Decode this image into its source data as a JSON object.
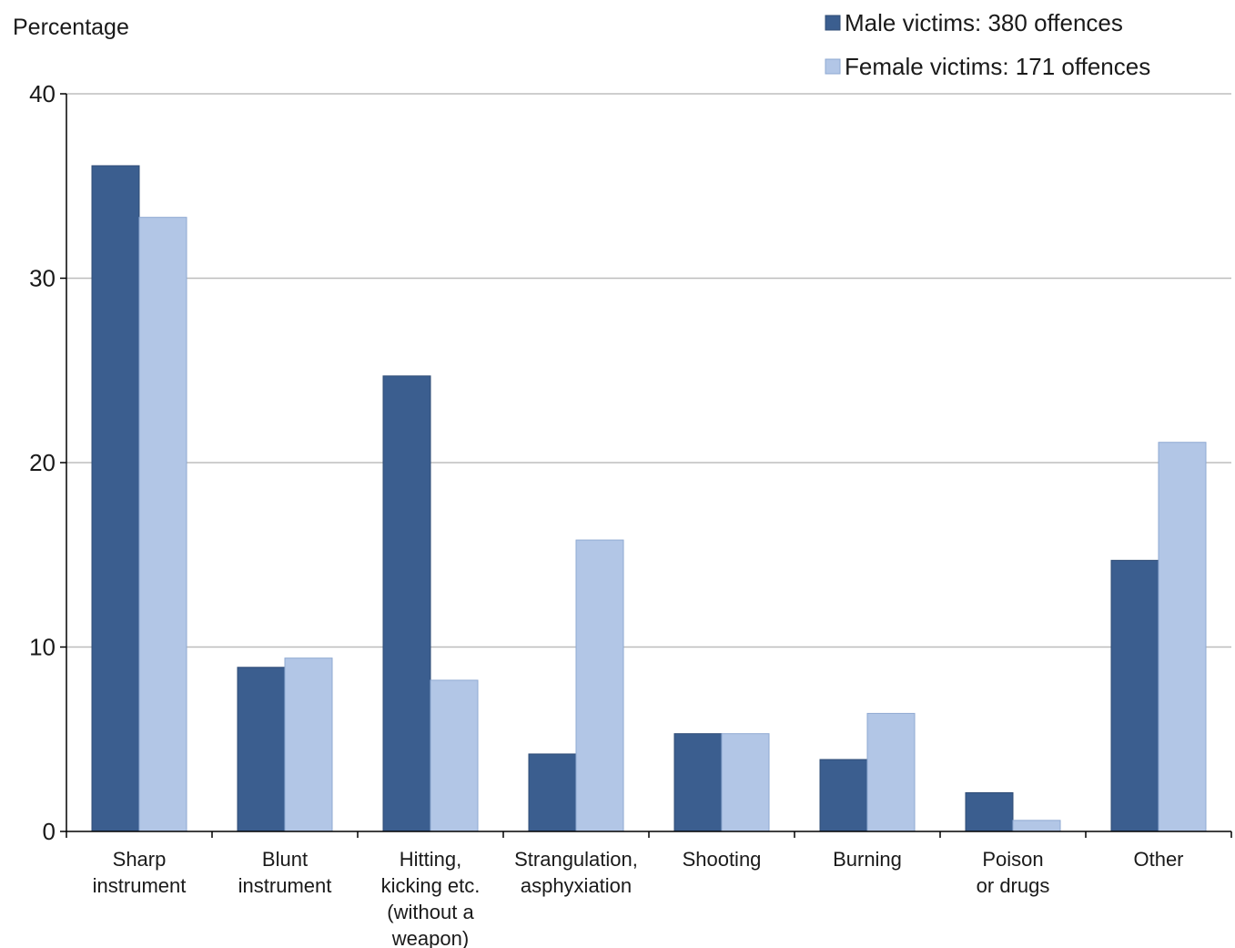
{
  "chart_data": {
    "type": "bar",
    "ylabel": "Percentage",
    "ylim": [
      0,
      40
    ],
    "yticks": [
      0,
      10,
      20,
      30,
      40
    ],
    "grid": true,
    "legend_position": "top-right",
    "categories": [
      [
        "Sharp",
        "instrument"
      ],
      [
        "Blunt",
        "instrument"
      ],
      [
        "Hitting,",
        "kicking etc.",
        "(without a",
        "weapon)"
      ],
      [
        "Strangulation,",
        "asphyxiation"
      ],
      [
        "Shooting"
      ],
      [
        "Burning"
      ],
      [
        "Poison",
        "or drugs"
      ],
      [
        "Other"
      ]
    ],
    "series": [
      {
        "name": "Male victims: 380 offences",
        "color": "#3b5e8f",
        "values": [
          36.1,
          8.9,
          24.7,
          4.2,
          5.3,
          3.9,
          2.1,
          14.7
        ]
      },
      {
        "name": "Female victims: 171 offences",
        "color": "#b2c6e6",
        "values": [
          33.3,
          9.4,
          8.2,
          15.8,
          5.3,
          6.4,
          0.6,
          21.1
        ]
      }
    ]
  }
}
